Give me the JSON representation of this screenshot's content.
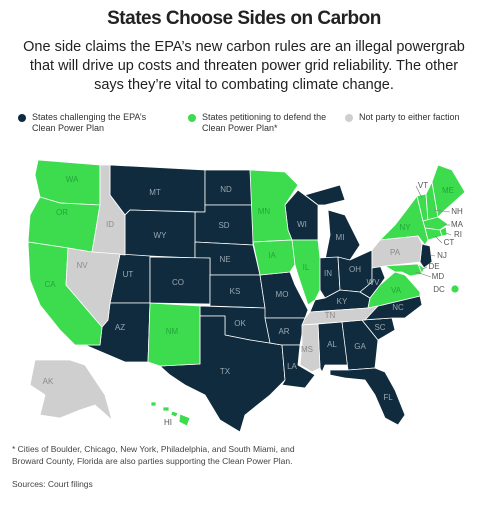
{
  "header": {
    "title": "States Choose Sides on Carbon",
    "subtitle": "One side claims the EPA’s new carbon rules are an illegal powergrab that will drive up costs and threaten power grid reliability. The other says they’re vital to combating climate change."
  },
  "legend": [
    {
      "label": "States challenging the EPA’s Clean Power Plan",
      "color": "#0f2b3d",
      "states": [
        "MT",
        "ND",
        "SD",
        "WY",
        "NE",
        "UT",
        "CO",
        "KS",
        "AZ",
        "OK",
        "TX",
        "MO",
        "AR",
        "LA",
        "WI",
        "MI",
        "IN",
        "OH",
        "KY",
        "WV",
        "AL",
        "GA",
        "SC",
        "NC",
        "FL",
        "NJ"
      ]
    },
    {
      "label": "States petitioning to defend the Clean Power Plan*",
      "color": "#3ddc4e",
      "states": [
        "WA",
        "OR",
        "CA",
        "NM",
        "MN",
        "IA",
        "IL",
        "NY",
        "VT",
        "NH",
        "ME",
        "MA",
        "RI",
        "CT",
        "DE",
        "MD",
        "VA",
        "DC",
        "HI"
      ]
    },
    {
      "label": "Not party to either faction",
      "color": "#cfcfcf",
      "states": [
        "ID",
        "NV",
        "TN",
        "MS",
        "PA",
        "AK"
      ]
    }
  ],
  "footnote": "* Cities of Boulder, Chicago, New York, Philadelphia, and South Miami, and Broward County, Florida are also parties supporting the Clean Power Plan.",
  "source": "Sources: Court filings"
}
